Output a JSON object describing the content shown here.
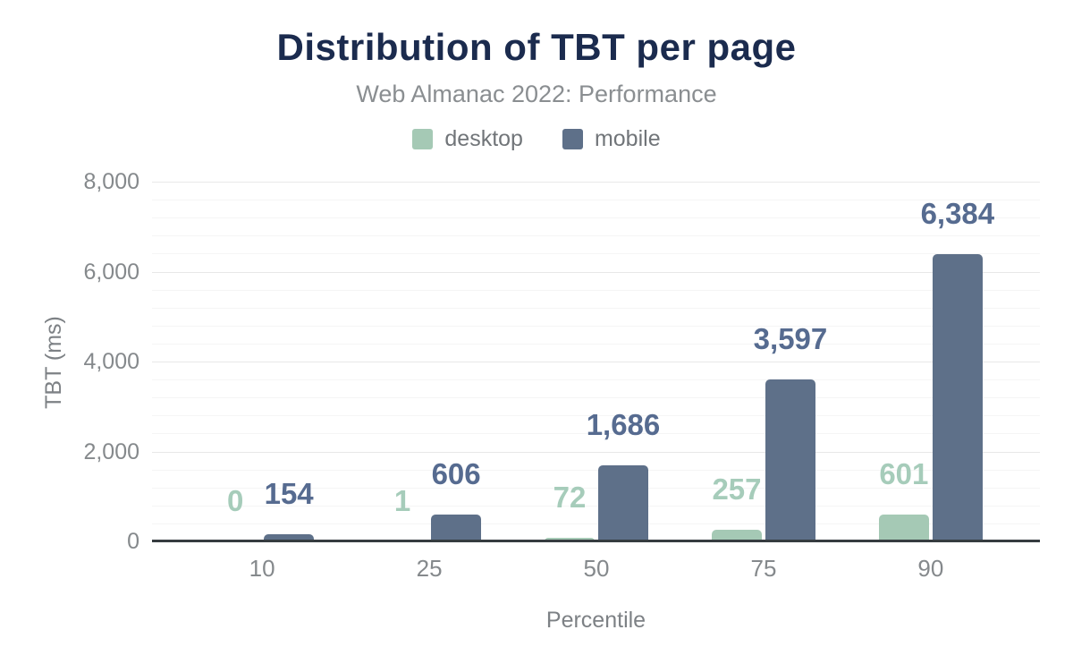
{
  "colors": {
    "title": "#1b2b4e",
    "subtitle": "#8a8e91",
    "legend_text": "#717579",
    "axis_text": "#85898c",
    "axis_title": "#7d8185",
    "axis_line": "#363c40",
    "grid_major": "#e8e8e8",
    "grid_minor": "#f5f5f5",
    "background": "#ffffff"
  },
  "chart_data": {
    "type": "bar",
    "title": "Distribution of TBT per page",
    "subtitle": "Web Almanac 2022: Performance",
    "xlabel": "Percentile",
    "ylabel": "TBT (ms)",
    "categories": [
      "10",
      "25",
      "50",
      "75",
      "90"
    ],
    "series": [
      {
        "name": "desktop",
        "color": "#a5c9b5",
        "label_color": "#a6ccba",
        "values": [
          0,
          1,
          72,
          257,
          601
        ],
        "value_labels": [
          "0",
          "1",
          "72",
          "257",
          "601"
        ]
      },
      {
        "name": "mobile",
        "color": "#5e7089",
        "label_color": "#566b90",
        "values": [
          154,
          606,
          1686,
          3597,
          6384
        ],
        "value_labels": [
          "154",
          "606",
          "1,686",
          "3,597",
          "6,384"
        ]
      }
    ],
    "ylim": [
      0,
      8000
    ],
    "y_major_ticks": [
      0,
      2000,
      4000,
      6000,
      8000
    ],
    "y_tick_labels": [
      "0",
      "2,000",
      "4,000",
      "6,000",
      "8,000"
    ],
    "y_minor_step": 400,
    "grid": true,
    "legend_position": "top"
  }
}
